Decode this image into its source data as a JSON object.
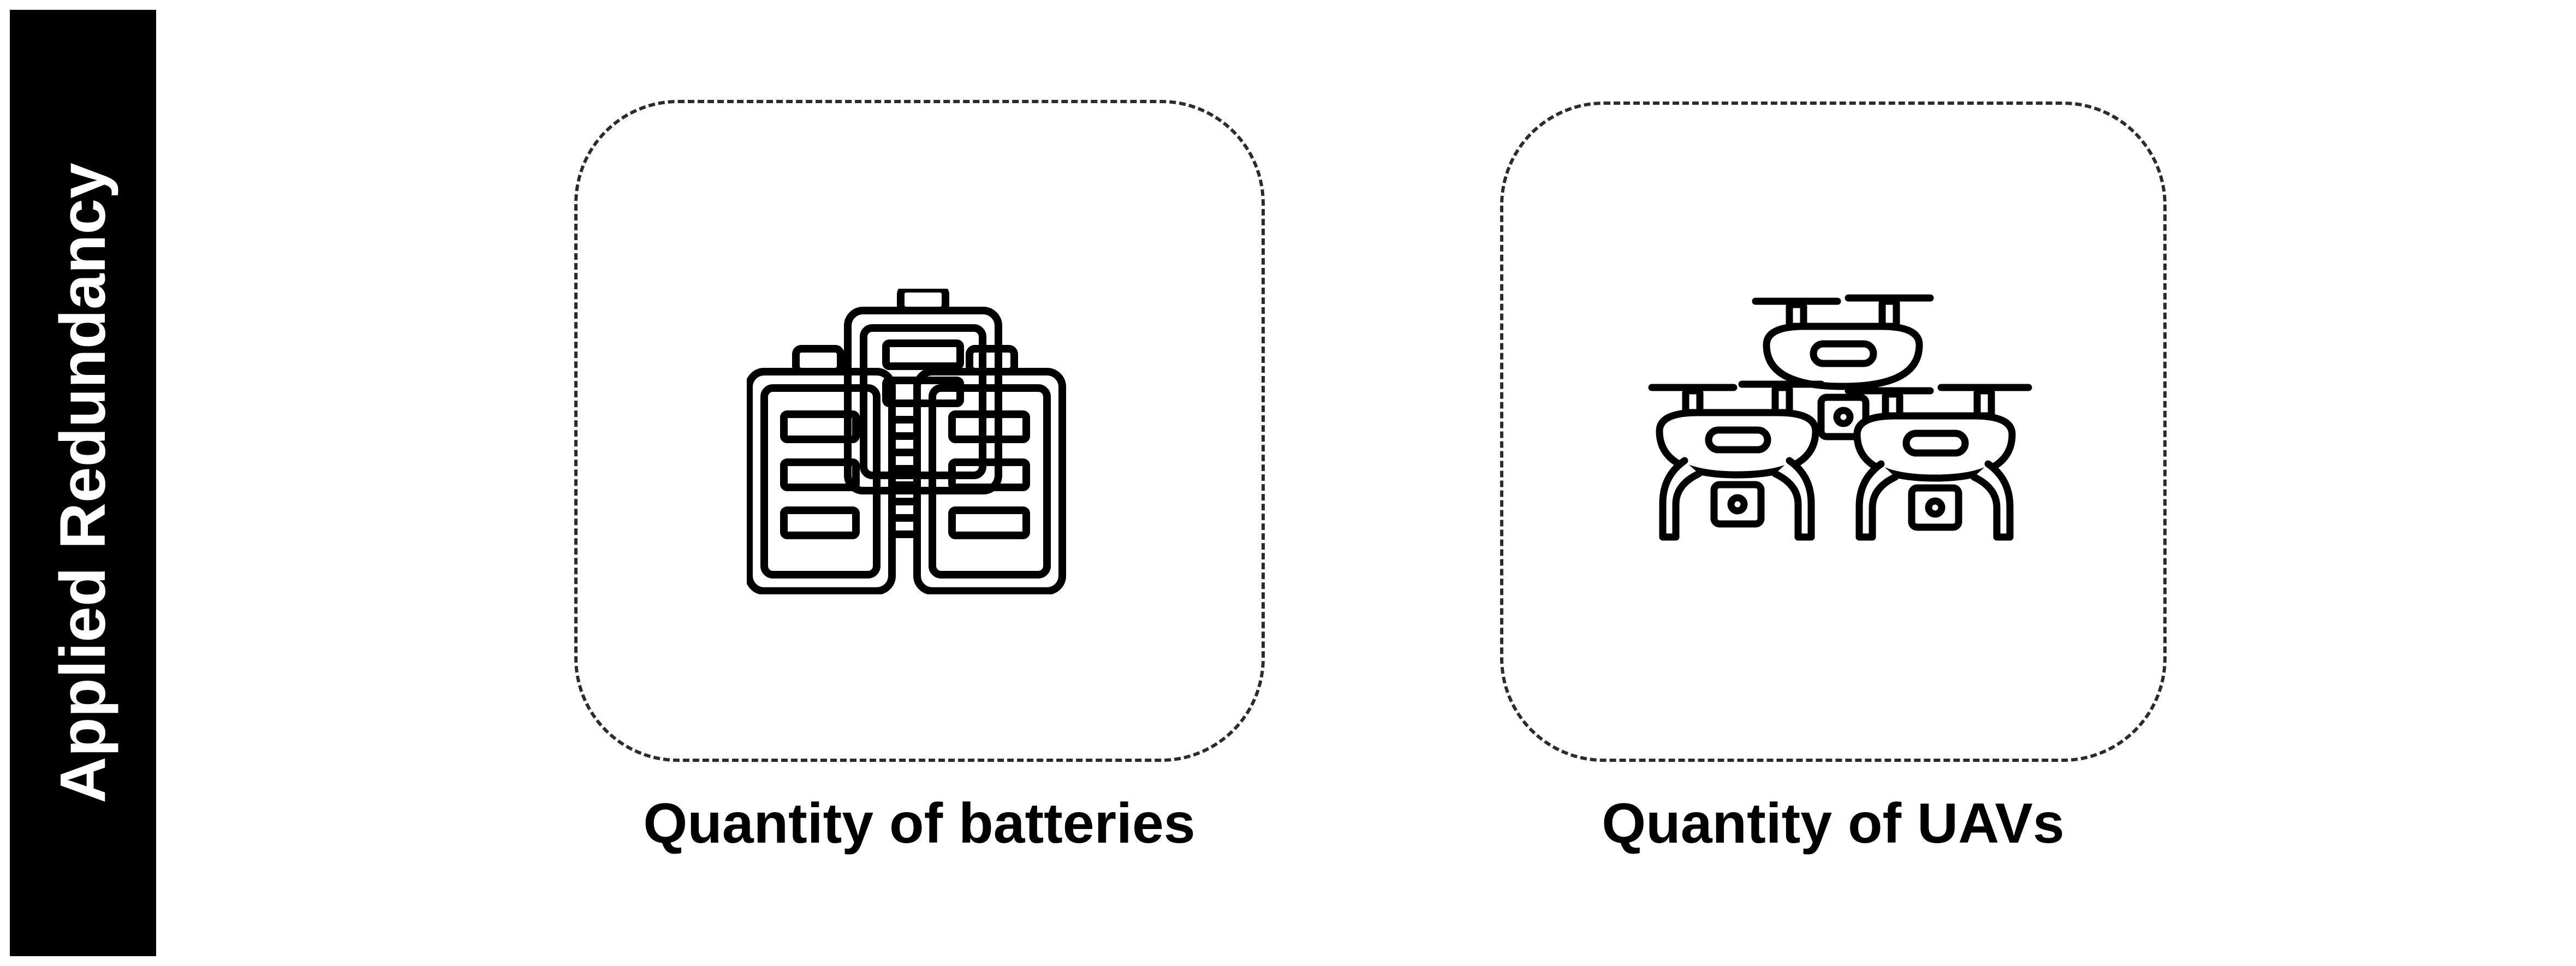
{
  "side_label": "Applied Redundancy",
  "panels": [
    {
      "caption": "Quantity of batteries",
      "icon": "batteries-icon"
    },
    {
      "caption": "Quantity of UAVs",
      "icon": "drones-icon"
    }
  ],
  "colors": {
    "sidebar": "#000000",
    "sidebar_text": "#ffffff",
    "stroke": "#000000",
    "dashed_border": "#2b2b2b"
  }
}
